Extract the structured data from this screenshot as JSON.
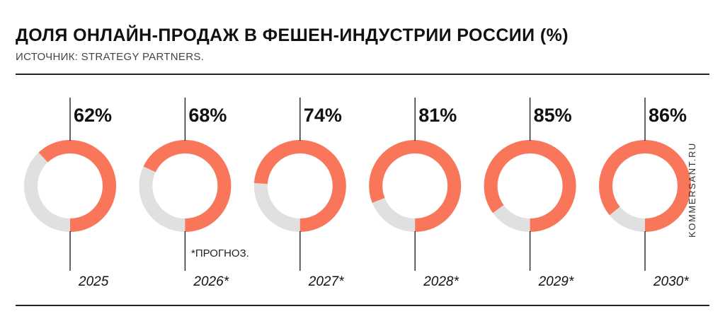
{
  "header": {
    "title": "ДОЛЯ ОНЛАЙН-ПРОДАЖ В ФЕШЕН-ИНДУСТРИИ РОССИИ (%)",
    "source": "ИСТОЧНИК: STRATEGY PARTNERS."
  },
  "note": "*ПРОГНОЗ.",
  "watermark": "KOMMERSANT.RU",
  "colors": {
    "filled": "#F9765A",
    "remainder": "#E0E0E0",
    "line": "#222222"
  },
  "chart_data": {
    "type": "pie",
    "categories": [
      "2025",
      "2026*",
      "2027*",
      "2028*",
      "2029*",
      "2030*"
    ],
    "values": [
      62,
      68,
      74,
      81,
      85,
      86
    ],
    "value_labels": [
      "62%",
      "68%",
      "74%",
      "81%",
      "85%",
      "86%"
    ],
    "max": 100
  }
}
